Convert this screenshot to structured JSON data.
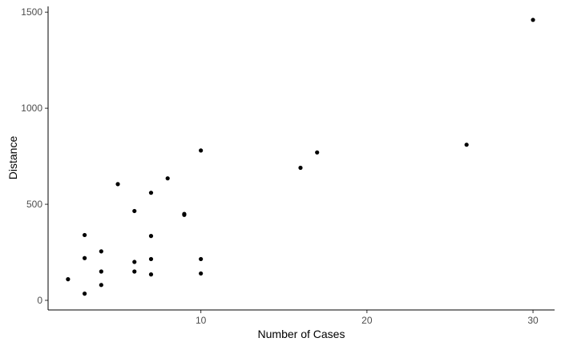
{
  "chart_data": {
    "type": "scatter",
    "xlabel": "Number of Cases",
    "ylabel": "Distance",
    "xlim": [
      0.8,
      31.3
    ],
    "ylim": [
      -50,
      1530
    ],
    "x_ticks": [
      10,
      20,
      30
    ],
    "y_ticks": [
      0,
      500,
      1000,
      1500
    ],
    "x_tick_labels": [
      "10",
      "20",
      "30"
    ],
    "y_tick_labels": [
      "0",
      "500",
      "1000",
      "1500"
    ],
    "grid": false,
    "point_color": "#000000",
    "points": [
      {
        "x": 2,
        "y": 110
      },
      {
        "x": 3,
        "y": 35
      },
      {
        "x": 3,
        "y": 220
      },
      {
        "x": 3,
        "y": 340
      },
      {
        "x": 4,
        "y": 80
      },
      {
        "x": 4,
        "y": 150
      },
      {
        "x": 4,
        "y": 255
      },
      {
        "x": 5,
        "y": 605
      },
      {
        "x": 6,
        "y": 150
      },
      {
        "x": 6,
        "y": 200
      },
      {
        "x": 6,
        "y": 465
      },
      {
        "x": 7,
        "y": 135
      },
      {
        "x": 7,
        "y": 215
      },
      {
        "x": 7,
        "y": 335
      },
      {
        "x": 7,
        "y": 560
      },
      {
        "x": 8,
        "y": 635
      },
      {
        "x": 9,
        "y": 445
      },
      {
        "x": 9,
        "y": 450
      },
      {
        "x": 10,
        "y": 140
      },
      {
        "x": 10,
        "y": 215
      },
      {
        "x": 10,
        "y": 780
      },
      {
        "x": 16,
        "y": 690
      },
      {
        "x": 17,
        "y": 770
      },
      {
        "x": 26,
        "y": 810
      },
      {
        "x": 30,
        "y": 1460
      }
    ]
  }
}
